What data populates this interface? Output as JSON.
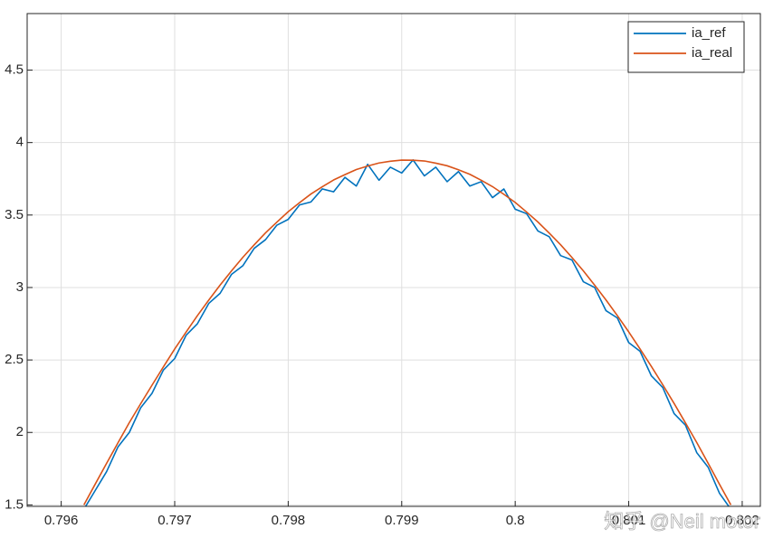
{
  "chart_data": {
    "type": "line",
    "x": [
      0.7962,
      0.7963,
      0.7964,
      0.7965,
      0.7966,
      0.7967,
      0.7968,
      0.7969,
      0.797,
      0.7971,
      0.7972,
      0.7973,
      0.7974,
      0.7975,
      0.7976,
      0.7977,
      0.7978,
      0.7979,
      0.798,
      0.7981,
      0.7982,
      0.7983,
      0.7984,
      0.7985,
      0.7986,
      0.7987,
      0.7988,
      0.7989,
      0.799,
      0.7991,
      0.7992,
      0.7993,
      0.7994,
      0.7995,
      0.7996,
      0.7997,
      0.7998,
      0.7999,
      0.8,
      0.8001,
      0.8002,
      0.8003,
      0.8004,
      0.8005,
      0.8006,
      0.8007,
      0.8008,
      0.8009,
      0.801,
      0.8011,
      0.8012,
      0.8013,
      0.8014,
      0.8015,
      0.8016,
      0.8017,
      0.8018,
      0.8019
    ],
    "series": [
      {
        "name": "ia_ref",
        "color": "#0072bd",
        "values": [
          1.47,
          1.6,
          1.73,
          1.9,
          2.0,
          2.17,
          2.27,
          2.43,
          2.51,
          2.67,
          2.75,
          2.89,
          2.96,
          3.09,
          3.15,
          3.27,
          3.33,
          3.43,
          3.47,
          3.57,
          3.59,
          3.68,
          3.66,
          3.76,
          3.7,
          3.85,
          3.74,
          3.83,
          3.79,
          3.88,
          3.77,
          3.83,
          3.73,
          3.8,
          3.7,
          3.73,
          3.62,
          3.68,
          3.54,
          3.51,
          3.39,
          3.35,
          3.22,
          3.19,
          3.04,
          3.0,
          2.84,
          2.79,
          2.62,
          2.56,
          2.39,
          2.31,
          2.13,
          2.05,
          1.86,
          1.76,
          1.58,
          1.47
        ]
      },
      {
        "name": "ia_real",
        "color": "#d95319",
        "values": [
          1.5,
          1.644,
          1.787,
          1.928,
          2.068,
          2.198,
          2.326,
          2.452,
          2.576,
          2.692,
          2.806,
          2.913,
          3.017,
          3.114,
          3.208,
          3.294,
          3.377,
          3.451,
          3.523,
          3.585,
          3.645,
          3.695,
          3.742,
          3.779,
          3.814,
          3.838,
          3.859,
          3.871,
          3.879,
          3.878,
          3.873,
          3.858,
          3.84,
          3.812,
          3.781,
          3.74,
          3.696,
          3.643,
          3.587,
          3.521,
          3.452,
          3.375,
          3.295,
          3.207,
          3.115,
          3.016,
          2.914,
          2.806,
          2.694,
          2.576,
          2.455,
          2.329,
          2.2,
          2.066,
          1.93,
          1.787,
          1.642,
          1.5
        ]
      }
    ],
    "xlim": [
      0.7957,
      0.80216
    ],
    "ylim": [
      1.49,
      4.89
    ],
    "xticks": [
      0.796,
      0.797,
      0.798,
      0.799,
      0.8,
      0.801,
      0.802
    ],
    "yticks": [
      1.5,
      2,
      2.5,
      3,
      3.5,
      4,
      4.5
    ],
    "grid": true,
    "legend": "northeast",
    "watermark": "知乎 @Neil motor"
  }
}
